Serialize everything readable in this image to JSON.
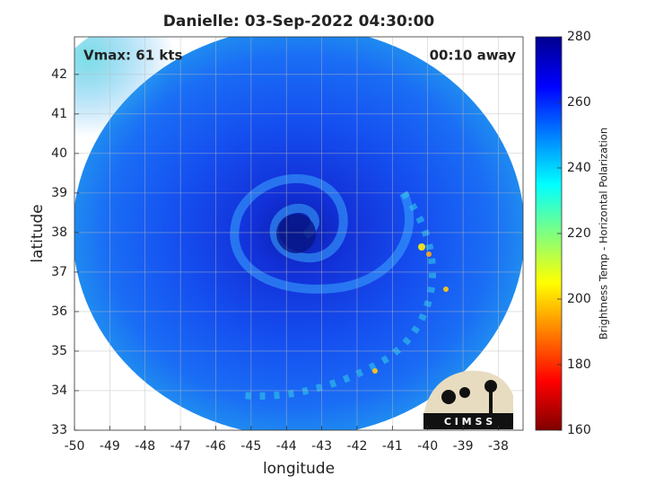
{
  "chart_data": {
    "type": "image",
    "title": "Danielle: 03-Sep-2022 04:30:00",
    "xlabel": "longitude",
    "ylabel": "latitude",
    "xlim": [
      -50,
      -37.3
    ],
    "ylim": [
      33,
      42.95
    ],
    "xticks": [
      -50,
      -49,
      -48,
      -47,
      -46,
      -45,
      -44,
      -43,
      -42,
      -41,
      -40,
      -39,
      -38
    ],
    "yticks": [
      33,
      34,
      35,
      36,
      37,
      38,
      39,
      40,
      41,
      42
    ],
    "grid": true,
    "annotations": {
      "left": "Vmax: 61 kts",
      "right": "00:10 away"
    },
    "colorbar": {
      "label": "Brightness Temp - Horizontal Polarization",
      "lim": [
        160,
        280
      ],
      "ticks": [
        160,
        180,
        200,
        220,
        240,
        260,
        280
      ],
      "colormap": "jet"
    },
    "logo": "C I M S S"
  }
}
